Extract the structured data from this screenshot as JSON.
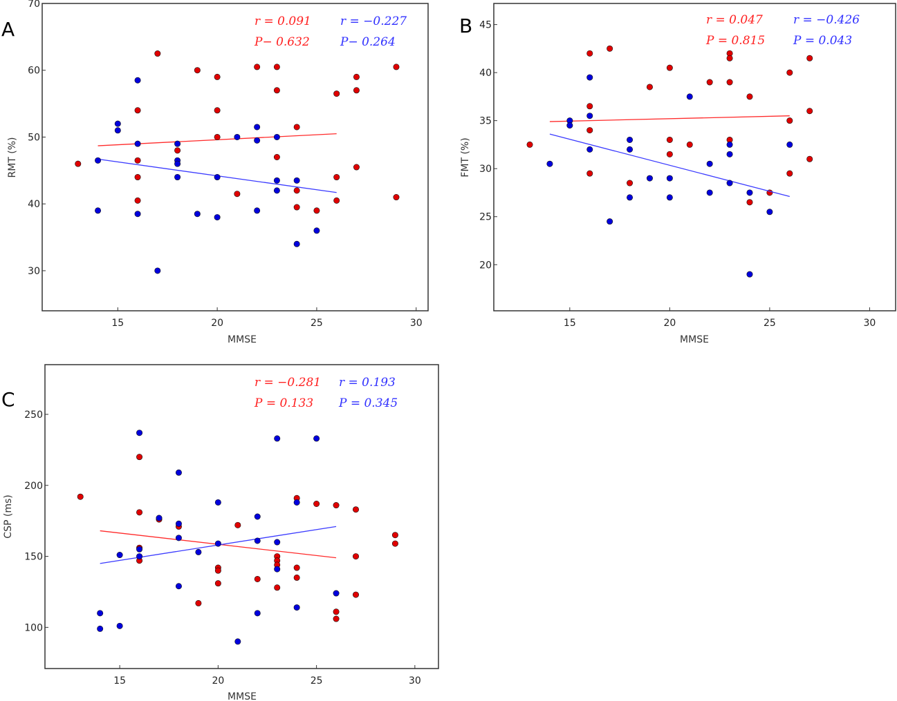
{
  "chart_data": [
    {
      "type": "scatter",
      "panel_label": "A",
      "xlabel": "MMSE",
      "ylabel": "RMT (%)",
      "xlim": [
        11.2,
        30.6
      ],
      "ylim": [
        24,
        70
      ],
      "xticks": [
        15,
        20,
        25,
        30
      ],
      "yticks": [
        30,
        40,
        50,
        60,
        70
      ],
      "grid": false,
      "colors": {
        "red": "#e00000",
        "blue": "#0000dd"
      },
      "annotations": {
        "red_r": "r = 0.091",
        "red_p": "P− 0.632",
        "blue_r": "r = −0.227",
        "blue_p": "P− 0.264"
      },
      "series": [
        {
          "color": "red",
          "points": [
            [
              13,
              46
            ],
            [
              16,
              54
            ],
            [
              16,
              46.5
            ],
            [
              16,
              44
            ],
            [
              16,
              40.5
            ],
            [
              17,
              62.5
            ],
            [
              18,
              48
            ],
            [
              19,
              60
            ],
            [
              20,
              59
            ],
            [
              20,
              54
            ],
            [
              20,
              50
            ],
            [
              21,
              41.5
            ],
            [
              22,
              60.5
            ],
            [
              23,
              60.5
            ],
            [
              23,
              57
            ],
            [
              23,
              47
            ],
            [
              24,
              51.5
            ],
            [
              24,
              42
            ],
            [
              24,
              39.5
            ],
            [
              25,
              39
            ],
            [
              26,
              56.5
            ],
            [
              26,
              44
            ],
            [
              26,
              40.5
            ],
            [
              27,
              59
            ],
            [
              27,
              57
            ],
            [
              27,
              45.5
            ],
            [
              29,
              60.5
            ],
            [
              29,
              41
            ]
          ],
          "fit": [
            [
              14,
              48.7
            ],
            [
              26,
              50.5
            ]
          ]
        },
        {
          "color": "blue",
          "points": [
            [
              14,
              46.5
            ],
            [
              14,
              39
            ],
            [
              15,
              52
            ],
            [
              15,
              51
            ],
            [
              16,
              58.5
            ],
            [
              16,
              49
            ],
            [
              16,
              38.5
            ],
            [
              17,
              30
            ],
            [
              18,
              49
            ],
            [
              18,
              46.5
            ],
            [
              18,
              46
            ],
            [
              18,
              44
            ],
            [
              19,
              38.5
            ],
            [
              20,
              44
            ],
            [
              20,
              38
            ],
            [
              21,
              50
            ],
            [
              22,
              51.5
            ],
            [
              22,
              49.5
            ],
            [
              22,
              39
            ],
            [
              23,
              50
            ],
            [
              23,
              43.5
            ],
            [
              23,
              42
            ],
            [
              24,
              43.5
            ],
            [
              24,
              34
            ],
            [
              25,
              36
            ]
          ],
          "fit": [
            [
              14,
              46.7
            ],
            [
              26,
              41.7
            ]
          ]
        }
      ]
    },
    {
      "type": "scatter",
      "panel_label": "B",
      "xlabel": "MMSE",
      "ylabel": "FMT (%)",
      "xlim": [
        11.2,
        31.3
      ],
      "ylim": [
        15.2,
        47.2
      ],
      "xticks": [
        15,
        20,
        25,
        30
      ],
      "yticks": [
        20,
        25,
        30,
        35,
        40,
        45
      ],
      "grid": false,
      "colors": {
        "red": "#e00000",
        "blue": "#0000dd"
      },
      "annotations": {
        "red_r": "r = 0.047",
        "red_p": "P = 0.815",
        "blue_r": "r = −0.426",
        "blue_p": "P = 0.043"
      },
      "series": [
        {
          "color": "red",
          "points": [
            [
              13,
              32.5
            ],
            [
              16,
              42
            ],
            [
              16,
              36.5
            ],
            [
              16,
              34
            ],
            [
              16,
              29.5
            ],
            [
              17,
              42.5
            ],
            [
              18,
              28.5
            ],
            [
              19,
              38.5
            ],
            [
              20,
              40.5
            ],
            [
              20,
              33
            ],
            [
              20,
              31.5
            ],
            [
              21,
              32.5
            ],
            [
              22,
              39
            ],
            [
              23,
              42
            ],
            [
              23,
              41.5
            ],
            [
              23,
              39
            ],
            [
              23,
              33
            ],
            [
              24,
              37.5
            ],
            [
              24,
              26.5
            ],
            [
              25,
              27.5
            ],
            [
              26,
              40
            ],
            [
              26,
              35
            ],
            [
              26,
              29.5
            ],
            [
              27,
              41.5
            ],
            [
              27,
              36
            ],
            [
              27,
              31
            ]
          ],
          "fit": [
            [
              14,
              34.9
            ],
            [
              26,
              35.5
            ]
          ]
        },
        {
          "color": "blue",
          "points": [
            [
              14,
              30.5
            ],
            [
              15,
              35
            ],
            [
              15,
              34.5
            ],
            [
              16,
              39.5
            ],
            [
              16,
              35.5
            ],
            [
              16,
              32
            ],
            [
              17,
              24.5
            ],
            [
              18,
              33
            ],
            [
              18,
              32
            ],
            [
              18,
              27
            ],
            [
              19,
              29
            ],
            [
              20,
              29
            ],
            [
              20,
              27
            ],
            [
              21,
              37.5
            ],
            [
              22,
              30.5
            ],
            [
              22,
              27.5
            ],
            [
              23,
              32.5
            ],
            [
              23,
              31.5
            ],
            [
              23,
              28.5
            ],
            [
              24,
              27.5
            ],
            [
              24,
              19
            ],
            [
              25,
              25.5
            ],
            [
              26,
              32.5
            ]
          ],
          "fit": [
            [
              14,
              33.6
            ],
            [
              26,
              27.1
            ]
          ]
        }
      ]
    },
    {
      "type": "scatter",
      "panel_label": "C",
      "xlabel": "MMSE",
      "ylabel": "CSP (ms)",
      "xlim": [
        11.2,
        31.2
      ],
      "ylim": [
        71,
        285
      ],
      "xticks": [
        15,
        20,
        25,
        30
      ],
      "yticks": [
        100,
        150,
        200,
        250
      ],
      "grid": false,
      "colors": {
        "red": "#e00000",
        "blue": "#0000dd"
      },
      "annotations": {
        "red_r": "r = −0.281",
        "red_p": "P = 0.133",
        "blue_r": "r = 0.193",
        "blue_p": "P = 0.345"
      },
      "series": [
        {
          "color": "red",
          "points": [
            [
              13,
              192
            ],
            [
              16,
              220
            ],
            [
              16,
              181
            ],
            [
              16,
              156
            ],
            [
              16,
              147
            ],
            [
              17,
              176
            ],
            [
              18,
              171
            ],
            [
              19,
              117
            ],
            [
              20,
              142
            ],
            [
              20,
              140
            ],
            [
              20,
              131
            ],
            [
              21,
              172
            ],
            [
              22,
              134
            ],
            [
              23,
              150
            ],
            [
              23,
              147
            ],
            [
              23,
              144
            ],
            [
              23,
              128
            ],
            [
              24,
              191
            ],
            [
              24,
              142
            ],
            [
              24,
              135
            ],
            [
              25,
              187
            ],
            [
              26,
              186
            ],
            [
              26,
              111
            ],
            [
              26,
              106
            ],
            [
              27,
              183
            ],
            [
              27,
              150
            ],
            [
              27,
              123
            ],
            [
              29,
              165
            ],
            [
              29,
              159
            ]
          ],
          "fit": [
            [
              14,
              168
            ],
            [
              26,
              149
            ]
          ]
        },
        {
          "color": "blue",
          "points": [
            [
              14,
              110
            ],
            [
              14,
              99
            ],
            [
              15,
              151
            ],
            [
              15,
              101
            ],
            [
              16,
              237
            ],
            [
              16,
              155
            ],
            [
              16,
              150
            ],
            [
              17,
              177
            ],
            [
              18,
              209
            ],
            [
              18,
              173
            ],
            [
              18,
              163
            ],
            [
              18,
              129
            ],
            [
              19,
              153
            ],
            [
              20,
              188
            ],
            [
              20,
              159
            ],
            [
              21,
              90
            ],
            [
              22,
              178
            ],
            [
              22,
              161
            ],
            [
              22,
              110
            ],
            [
              23,
              233
            ],
            [
              23,
              160
            ],
            [
              23,
              141
            ],
            [
              24,
              188
            ],
            [
              24,
              114
            ],
            [
              25,
              233
            ],
            [
              26,
              124
            ]
          ],
          "fit": [
            [
              14,
              145
            ],
            [
              26,
              171
            ]
          ]
        }
      ]
    }
  ]
}
